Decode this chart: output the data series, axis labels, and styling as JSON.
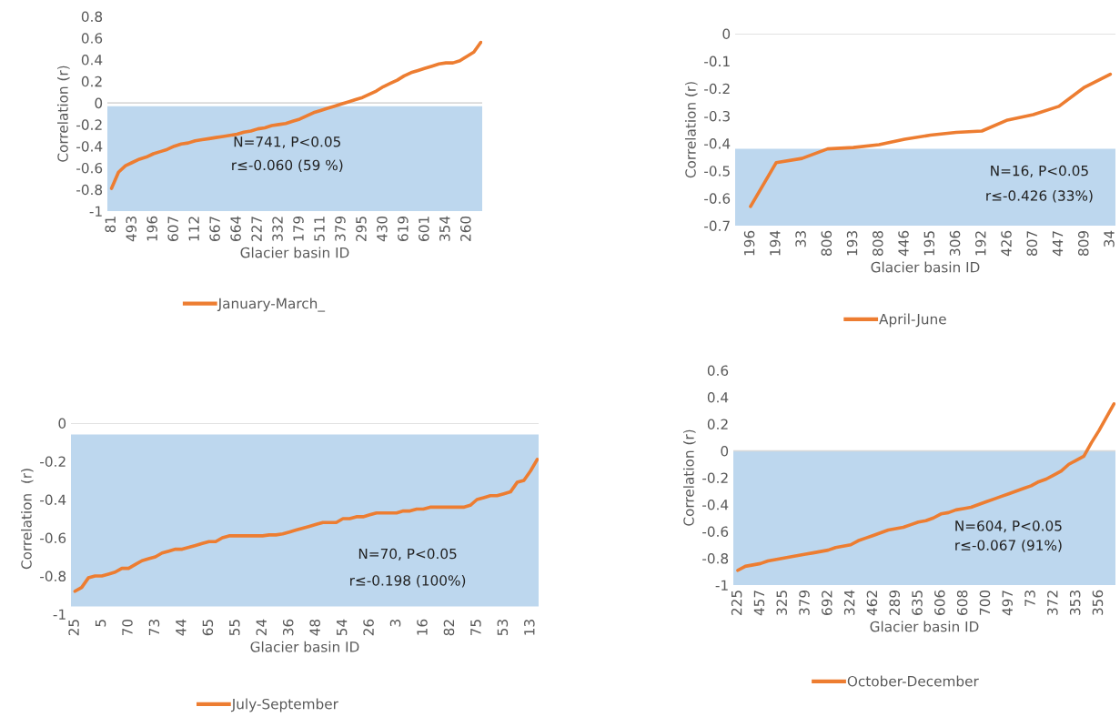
{
  "chart_data": [
    {
      "type": "line",
      "xlabel": "Glacier basin ID",
      "ylabel": "Correlation (r)",
      "legend": "bottom",
      "categories": [
        "81",
        null,
        null,
        "493",
        null,
        null,
        "196",
        null,
        null,
        "607",
        null,
        null,
        "112",
        null,
        null,
        "667",
        null,
        null,
        "664",
        null,
        null,
        "227",
        null,
        null,
        "332",
        null,
        null,
        "179",
        null,
        null,
        "511",
        null,
        null,
        "379",
        null,
        null,
        "295",
        null,
        null,
        "430",
        null,
        null,
        "619",
        null,
        null,
        "601",
        null,
        null,
        "354",
        null,
        null,
        "260",
        null,
        null
      ],
      "series": [
        {
          "name": "January-March_",
          "color": "#ed7d31",
          "values": [
            -0.79,
            -0.64,
            -0.58,
            -0.55,
            -0.52,
            -0.5,
            -0.47,
            -0.45,
            -0.43,
            -0.4,
            -0.38,
            -0.37,
            -0.35,
            -0.34,
            -0.33,
            -0.32,
            -0.31,
            -0.3,
            -0.29,
            -0.27,
            -0.26,
            -0.24,
            -0.23,
            -0.21,
            -0.2,
            -0.19,
            -0.17,
            -0.15,
            -0.12,
            -0.09,
            -0.07,
            -0.05,
            -0.03,
            -0.01,
            0.01,
            0.03,
            0.05,
            0.08,
            0.11,
            0.15,
            0.18,
            0.21,
            0.25,
            0.28,
            0.3,
            0.32,
            0.34,
            0.36,
            0.37,
            0.37,
            0.39,
            0.43,
            0.47,
            0.56
          ]
        }
      ],
      "ylim": [
        -1,
        0.8
      ],
      "yticks": [
        -1,
        -0.8,
        -0.6,
        -0.4,
        -0.2,
        0,
        0.2,
        0.4,
        0.6,
        0.8
      ],
      "ref_lines": [
        {
          "axis": "y",
          "value": 0
        }
      ],
      "bands": [
        {
          "axis": "y",
          "from": -1,
          "to": -0.03,
          "color": "#bdd7ee"
        }
      ],
      "annotations": [
        "N=741, P<0.05",
        "r≤-0.060 (59 %)"
      ]
    },
    {
      "type": "line",
      "xlabel": "Glacier basin ID",
      "ylabel": "Correlation (r)",
      "legend": "bottom",
      "categories": [
        "196",
        "194",
        "33",
        "806",
        "193",
        "808",
        "446",
        "195",
        "306",
        "192",
        "426",
        "807",
        "447",
        "809",
        "34"
      ],
      "series": [
        {
          "name": "April-June",
          "color": "#ed7d31",
          "values": [
            -0.63,
            -0.47,
            -0.455,
            -0.42,
            -0.415,
            -0.405,
            -0.385,
            -0.37,
            -0.36,
            -0.355,
            -0.315,
            -0.295,
            -0.265,
            -0.195,
            -0.148
          ]
        }
      ],
      "ylim": [
        -0.7,
        0
      ],
      "yticks": [
        -0.7,
        -0.6,
        -0.5,
        -0.4,
        -0.3,
        -0.2,
        -0.1,
        0
      ],
      "ref_lines": [
        {
          "axis": "y",
          "value": 0
        }
      ],
      "bands": [
        {
          "axis": "y",
          "from": -0.72,
          "to": -0.42,
          "color": "#bdd7ee"
        }
      ],
      "annotations": [
        "N=16, P<0.05",
        "r≤-0.426 (33%)"
      ]
    },
    {
      "type": "line",
      "xlabel": "Glacier basin ID",
      "ylabel": "Correlation  (r)",
      "legend": "bottom",
      "categories": [
        "25",
        null,
        null,
        null,
        "5",
        null,
        null,
        null,
        "70",
        null,
        null,
        null,
        "73",
        null,
        null,
        null,
        "44",
        null,
        null,
        null,
        "65",
        null,
        null,
        null,
        "55",
        null,
        null,
        null,
        "24",
        null,
        null,
        null,
        "36",
        null,
        null,
        null,
        "48",
        null,
        null,
        null,
        "54",
        null,
        null,
        null,
        "26",
        null,
        null,
        null,
        "3",
        null,
        null,
        null,
        "16",
        null,
        null,
        null,
        "82",
        null,
        null,
        null,
        "75",
        null,
        null,
        null,
        "53",
        null,
        null,
        null,
        "13",
        null
      ],
      "series": [
        {
          "name": "July-September",
          "color": "#ed7d31",
          "values": [
            -0.88,
            -0.86,
            -0.81,
            -0.8,
            -0.8,
            -0.79,
            -0.78,
            -0.76,
            -0.76,
            -0.74,
            -0.72,
            -0.71,
            -0.7,
            -0.68,
            -0.67,
            -0.66,
            -0.66,
            -0.65,
            -0.64,
            -0.63,
            -0.62,
            -0.62,
            -0.6,
            -0.59,
            -0.59,
            -0.59,
            -0.59,
            -0.59,
            -0.59,
            -0.585,
            -0.585,
            -0.58,
            -0.57,
            -0.56,
            -0.55,
            -0.54,
            -0.53,
            -0.52,
            -0.52,
            -0.52,
            -0.5,
            -0.5,
            -0.49,
            -0.49,
            -0.48,
            -0.47,
            -0.47,
            -0.47,
            -0.47,
            -0.46,
            -0.46,
            -0.45,
            -0.45,
            -0.44,
            -0.44,
            -0.44,
            -0.44,
            -0.44,
            -0.44,
            -0.43,
            -0.4,
            -0.39,
            -0.38,
            -0.38,
            -0.37,
            -0.36,
            -0.31,
            -0.3,
            -0.25,
            -0.19
          ]
        }
      ],
      "ylim": [
        -1,
        0
      ],
      "yticks": [
        -1,
        -0.8,
        -0.6,
        -0.4,
        -0.2,
        0
      ],
      "ref_lines": [
        {
          "axis": "y",
          "value": 0
        }
      ],
      "bands": [
        {
          "axis": "y",
          "from": -0.96,
          "to": -0.06,
          "color": "#bdd7ee"
        }
      ],
      "annotations": [
        "N=70, P<0.05",
        "r≤-0.198 (100%)"
      ]
    },
    {
      "type": "line",
      "xlabel": "Glacier basin ID",
      "ylabel": "Correlation (r)",
      "legend": "bottom",
      "categories": [
        "225",
        null,
        null,
        "457",
        null,
        null,
        "325",
        null,
        null,
        "379",
        null,
        null,
        "692",
        null,
        null,
        "324",
        null,
        null,
        "462",
        null,
        null,
        "289",
        null,
        null,
        "635",
        null,
        null,
        "606",
        null,
        null,
        "608",
        null,
        null,
        "700",
        null,
        null,
        "497",
        null,
        null,
        "73",
        null,
        null,
        "372",
        null,
        null,
        "353",
        null,
        null,
        "356",
        null,
        null
      ],
      "series": [
        {
          "name": "October-December",
          "color": "#ed7d31",
          "values": [
            -0.89,
            -0.86,
            -0.85,
            -0.84,
            -0.82,
            -0.81,
            -0.8,
            -0.79,
            -0.78,
            -0.77,
            -0.76,
            -0.75,
            -0.74,
            -0.72,
            -0.71,
            -0.7,
            -0.67,
            -0.65,
            -0.63,
            -0.61,
            -0.59,
            -0.58,
            -0.57,
            -0.55,
            -0.53,
            -0.52,
            -0.5,
            -0.47,
            -0.46,
            -0.44,
            -0.43,
            -0.42,
            -0.4,
            -0.38,
            -0.36,
            -0.34,
            -0.32,
            -0.3,
            -0.28,
            -0.26,
            -0.23,
            -0.21,
            -0.18,
            -0.15,
            -0.1,
            -0.07,
            -0.04,
            0.06,
            0.15,
            0.25,
            0.35
          ]
        }
      ],
      "ylim": [
        -1,
        0.6
      ],
      "yticks": [
        -1,
        -0.8,
        -0.6,
        -0.4,
        -0.2,
        0,
        0.2,
        0.4,
        0.6
      ],
      "ref_lines": [
        {
          "axis": "y",
          "value": 0
        }
      ],
      "bands": [
        {
          "axis": "y",
          "from": -1,
          "to": 0,
          "color": "#bdd7ee"
        }
      ],
      "annotations": [
        "N=604, P<0.05",
        "r≤-0.067 (91%)"
      ]
    }
  ]
}
